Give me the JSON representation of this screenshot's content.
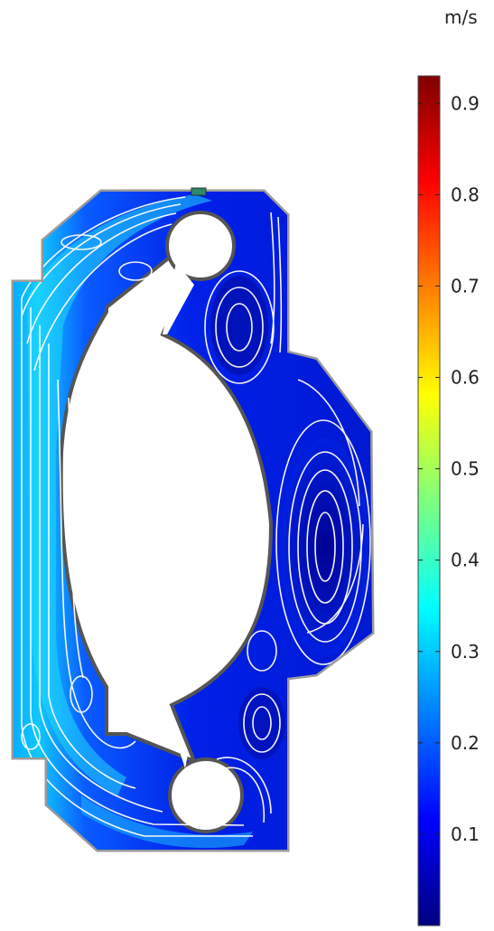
{
  "chart_data": {
    "type": "heatmap",
    "title": "",
    "colorbar": {
      "unit": "m/s",
      "range": [
        0.0,
        0.93
      ],
      "ticks": [
        0.1,
        0.2,
        0.3,
        0.4,
        0.5,
        0.6,
        0.7,
        0.8,
        0.9
      ],
      "tick_labels": [
        "0.1",
        "0.2",
        "0.3",
        "0.4",
        "0.5",
        "0.6",
        "0.7",
        "0.8",
        "0.9"
      ],
      "colormap": "jet",
      "colormap_stops": [
        "#00007f",
        "#0000ff",
        "#007fff",
        "#00ffff",
        "#7fff7f",
        "#ffff00",
        "#ff7f00",
        "#ff0000",
        "#7f0000"
      ]
    },
    "field": {
      "quantity": "velocity magnitude",
      "max_observed": 0.42,
      "min_observed": 0.0,
      "overlay": "streamlines"
    }
  }
}
